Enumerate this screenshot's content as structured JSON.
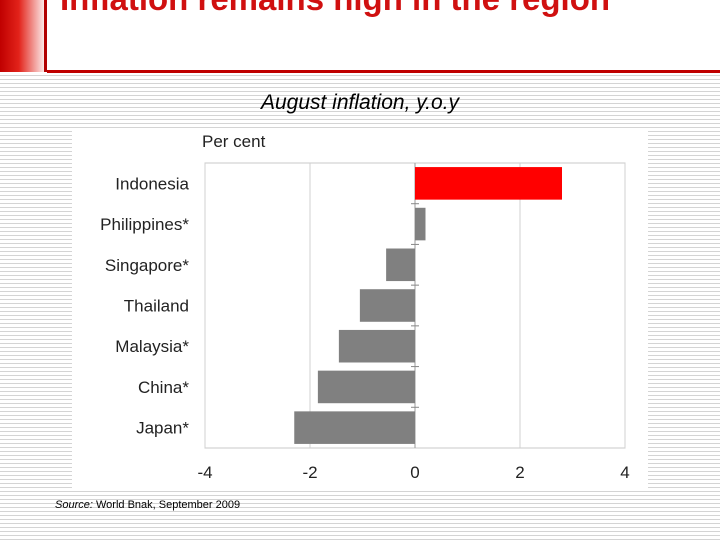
{
  "slide": {
    "title": "Inflation remains high in the region",
    "subtitle": "August inflation, y.o.y",
    "source_label": "Source:",
    "source_text": "World Bnak, September 2009"
  },
  "colors": {
    "accent_red": "#ff0000",
    "bar_grey": "#808080",
    "title_red": "#d01010"
  },
  "chart_data": {
    "type": "bar",
    "orientation": "horizontal",
    "unit_label": "Per cent",
    "categories": [
      "Indonesia",
      "Philippines*",
      "Singapore*",
      "Thailand",
      "Malaysia*",
      "China*",
      "Japan*"
    ],
    "values": [
      2.8,
      0.2,
      -0.55,
      -1.05,
      -1.45,
      -1.85,
      -2.3
    ],
    "highlight": "Indonesia",
    "xlim": [
      -4,
      4
    ],
    "xticks": [
      "-4",
      "-2",
      "0",
      "2",
      "4"
    ],
    "grid": true
  }
}
